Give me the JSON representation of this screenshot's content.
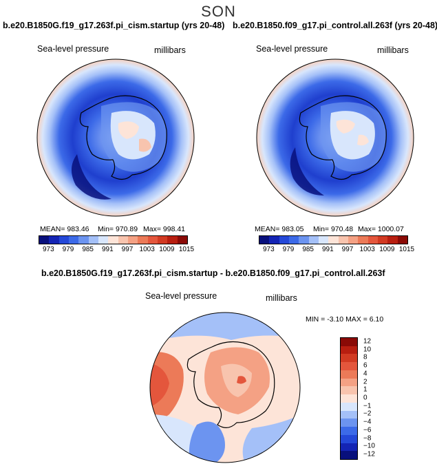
{
  "season": "SON",
  "top_left": {
    "title": "b.e20.B1850G.f19_g17.263f.pi_cism.startup (yrs 20-48)",
    "variable": "Sea-level pressure",
    "units": "millibars",
    "mean": "MEAN= 983.46",
    "min": "Min= 970.89",
    "max": "Max= 998.41"
  },
  "top_right": {
    "title": "b.e20.B1850.f09_g17.pi_control.all.263f (yrs 20-48)",
    "variable": "Sea-level pressure",
    "units": "millibars",
    "mean": "MEAN= 983.05",
    "min": "Min= 970.48",
    "max": "Max= 1000.07"
  },
  "diff": {
    "title": "b.e20.B1850G.f19_g17.263f.pi_cism.startup - b.e20.B1850.f09_g17.pi_control.all.263f",
    "variable": "Sea-level pressure",
    "units": "millibars",
    "minmax": "MIN =   -3.10  MAX =    6.10"
  },
  "abs_colorbar": {
    "ticks": [
      "973",
      "979",
      "985",
      "991",
      "997",
      "1003",
      "1009",
      "1015"
    ],
    "colors": [
      "#08107c",
      "#1424b4",
      "#2448d8",
      "#3c6ae8",
      "#6c94f0",
      "#a4c0f8",
      "#d8e6fc",
      "#fde4d8",
      "#f8c4ae",
      "#f4a184",
      "#ec7a58",
      "#e4563c",
      "#d23a22",
      "#b81e10",
      "#8a0a06"
    ]
  },
  "diff_colorbar": {
    "ticks": [
      "12",
      "10",
      "8",
      "6",
      "4",
      "2",
      "1",
      "0",
      "−1",
      "−2",
      "−4",
      "−6",
      "−8",
      "−10",
      "−12"
    ],
    "colors": [
      "#8a0a06",
      "#b81e10",
      "#d23a22",
      "#e4563c",
      "#ec7a58",
      "#f4a184",
      "#f8c4ae",
      "#fde4d8",
      "#d8e6fc",
      "#a4c0f8",
      "#6c94f0",
      "#3c6ae8",
      "#2448d8",
      "#1424b4",
      "#08107c"
    ]
  }
}
